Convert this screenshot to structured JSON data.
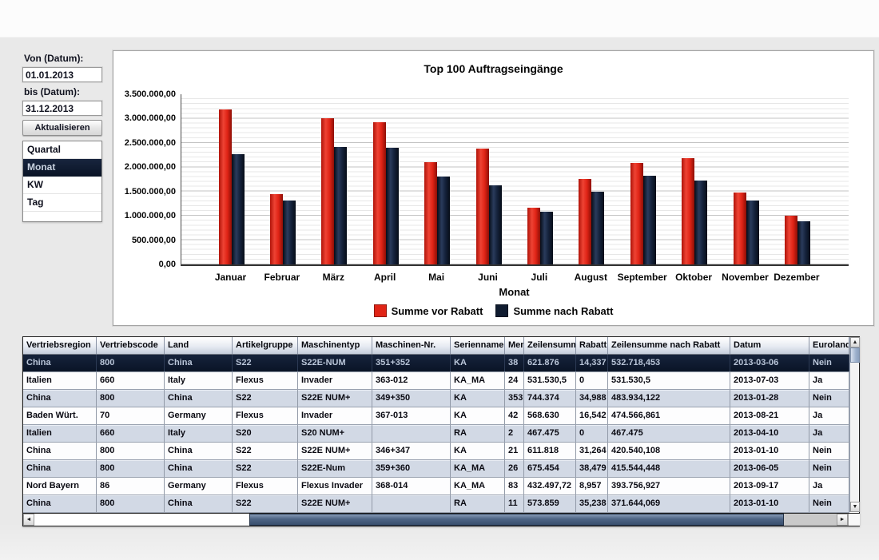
{
  "filter_panel": {
    "from_label": "Von (Datum):",
    "from_value": "01.01.2013",
    "to_label": "bis (Datum):",
    "to_value": "31.12.2013",
    "refresh_button": "Aktualisieren",
    "period_list": {
      "items": [
        {
          "label": "Quartal",
          "selected": false
        },
        {
          "label": "Monat",
          "selected": true
        },
        {
          "label": "KW",
          "selected": false
        },
        {
          "label": "Tag",
          "selected": false
        }
      ]
    }
  },
  "chart_data": {
    "type": "bar",
    "title": "Top 100 Auftragseingänge",
    "categories": [
      "Januar",
      "Februar",
      "März",
      "April",
      "Mai",
      "Juni",
      "Juli",
      "August",
      "September",
      "Oktober",
      "November",
      "Dezember"
    ],
    "series": [
      {
        "name": "Summe vor Rabatt",
        "color": "#e02416",
        "values": [
          3190000,
          1450000,
          3000000,
          2920000,
          2110000,
          2390000,
          1170000,
          1760000,
          2090000,
          2180000,
          1480000,
          1000000
        ]
      },
      {
        "name": "Summe nach Rabatt",
        "color": "#101c30",
        "values": [
          2270000,
          1310000,
          2420000,
          2400000,
          1810000,
          1620000,
          1080000,
          1490000,
          1820000,
          1730000,
          1310000,
          890000
        ]
      }
    ],
    "xlabel": "Monat",
    "ylabel": "",
    "ylim": [
      0,
      3500000
    ],
    "ytick_step": 500000,
    "ytick_labels_top_down": [
      "3.500.000,00",
      "3.000.000,00",
      "2.500.000,00",
      "2.000.000,00",
      "1.500.000,00",
      "1.000.000,00",
      "500.000,00",
      "0,00"
    ],
    "grid": true,
    "legend_position": "bottom-center"
  },
  "table": {
    "columns": [
      {
        "label": "Vertriebsregion",
        "width": 92
      },
      {
        "label": "Vertriebscode",
        "width": 85
      },
      {
        "label": "Land",
        "width": 85
      },
      {
        "label": "Artikelgruppe",
        "width": 82
      },
      {
        "label": "Maschinentyp",
        "width": 93
      },
      {
        "label": "Maschinen-Nr.",
        "width": 98
      },
      {
        "label": "Serienname",
        "width": 68
      },
      {
        "label": "Menge",
        "width": 24
      },
      {
        "label": "Zeilensumme",
        "width": 65
      },
      {
        "label": "Rabatt",
        "width": 40
      },
      {
        "label": "Zeilensumme nach Rabatt",
        "width": 153
      },
      {
        "label": "Datum",
        "width": 99
      },
      {
        "label": "Euroland",
        "width": 50
      }
    ],
    "rows": [
      {
        "selected": true,
        "cells": [
          "China",
          "800",
          "China",
          "S22",
          "S22E-NUM",
          "351+352",
          "KA",
          "38",
          "621.876",
          "14,337",
          "532.718,453",
          "2013-03-06",
          "Nein"
        ]
      },
      {
        "selected": false,
        "cells": [
          "Italien",
          "660",
          "Italy",
          "Flexus",
          "Invader",
          "363-012",
          "KA_MA",
          "24",
          "531.530,5",
          "0",
          "531.530,5",
          "2013-07-03",
          "Ja"
        ]
      },
      {
        "selected": false,
        "cells": [
          "China",
          "800",
          "China",
          "S22",
          "S22E NUM+",
          "349+350",
          "KA",
          "353",
          "744.374",
          "34,988",
          "483.934,122",
          "2013-01-28",
          "Nein"
        ]
      },
      {
        "selected": false,
        "cells": [
          "Baden Würt.",
          "70",
          "Germany",
          "Flexus",
          "Invader",
          "367-013",
          "KA",
          "42",
          "568.630",
          "16,542",
          "474.566,861",
          "2013-08-21",
          "Ja"
        ]
      },
      {
        "selected": false,
        "cells": [
          "Italien",
          "660",
          "Italy",
          "S20",
          "S20 NUM+",
          "",
          "RA",
          "2",
          "467.475",
          "0",
          "467.475",
          "2013-04-10",
          "Ja"
        ]
      },
      {
        "selected": false,
        "cells": [
          "China",
          "800",
          "China",
          "S22",
          "S22E NUM+",
          "346+347",
          "KA",
          "21",
          "611.818",
          "31,264",
          "420.540,108",
          "2013-01-10",
          "Nein"
        ]
      },
      {
        "selected": false,
        "cells": [
          "China",
          "800",
          "China",
          "S22",
          "S22E-Num",
          "359+360",
          "KA_MA",
          "26",
          "675.454",
          "38,479",
          "415.544,448",
          "2013-06-05",
          "Nein"
        ]
      },
      {
        "selected": false,
        "cells": [
          "Nord Bayern",
          "86",
          "Germany",
          "Flexus",
          "Flexus Invader",
          "368-014",
          "KA_MA",
          "83",
          "432.497,72",
          "8,957",
          "393.756,927",
          "2013-09-17",
          "Ja"
        ]
      },
      {
        "selected": false,
        "cells": [
          "China",
          "800",
          "China",
          "S22",
          "S22E NUM+",
          "",
          "RA",
          "11",
          "573.859",
          "35,238",
          "371.644,069",
          "2013-01-10",
          "Nein"
        ]
      }
    ]
  },
  "icons": {
    "scroll_up": "▲",
    "scroll_down": "▼",
    "scroll_left": "◄",
    "scroll_right": "►"
  },
  "colors": {
    "accent_red": "#e02416",
    "accent_navy": "#101c30",
    "selected_row_bg": "#0c1728",
    "zebra_row_bg": "#d2d9e5",
    "sheet_bg": "#e9e9e9"
  }
}
